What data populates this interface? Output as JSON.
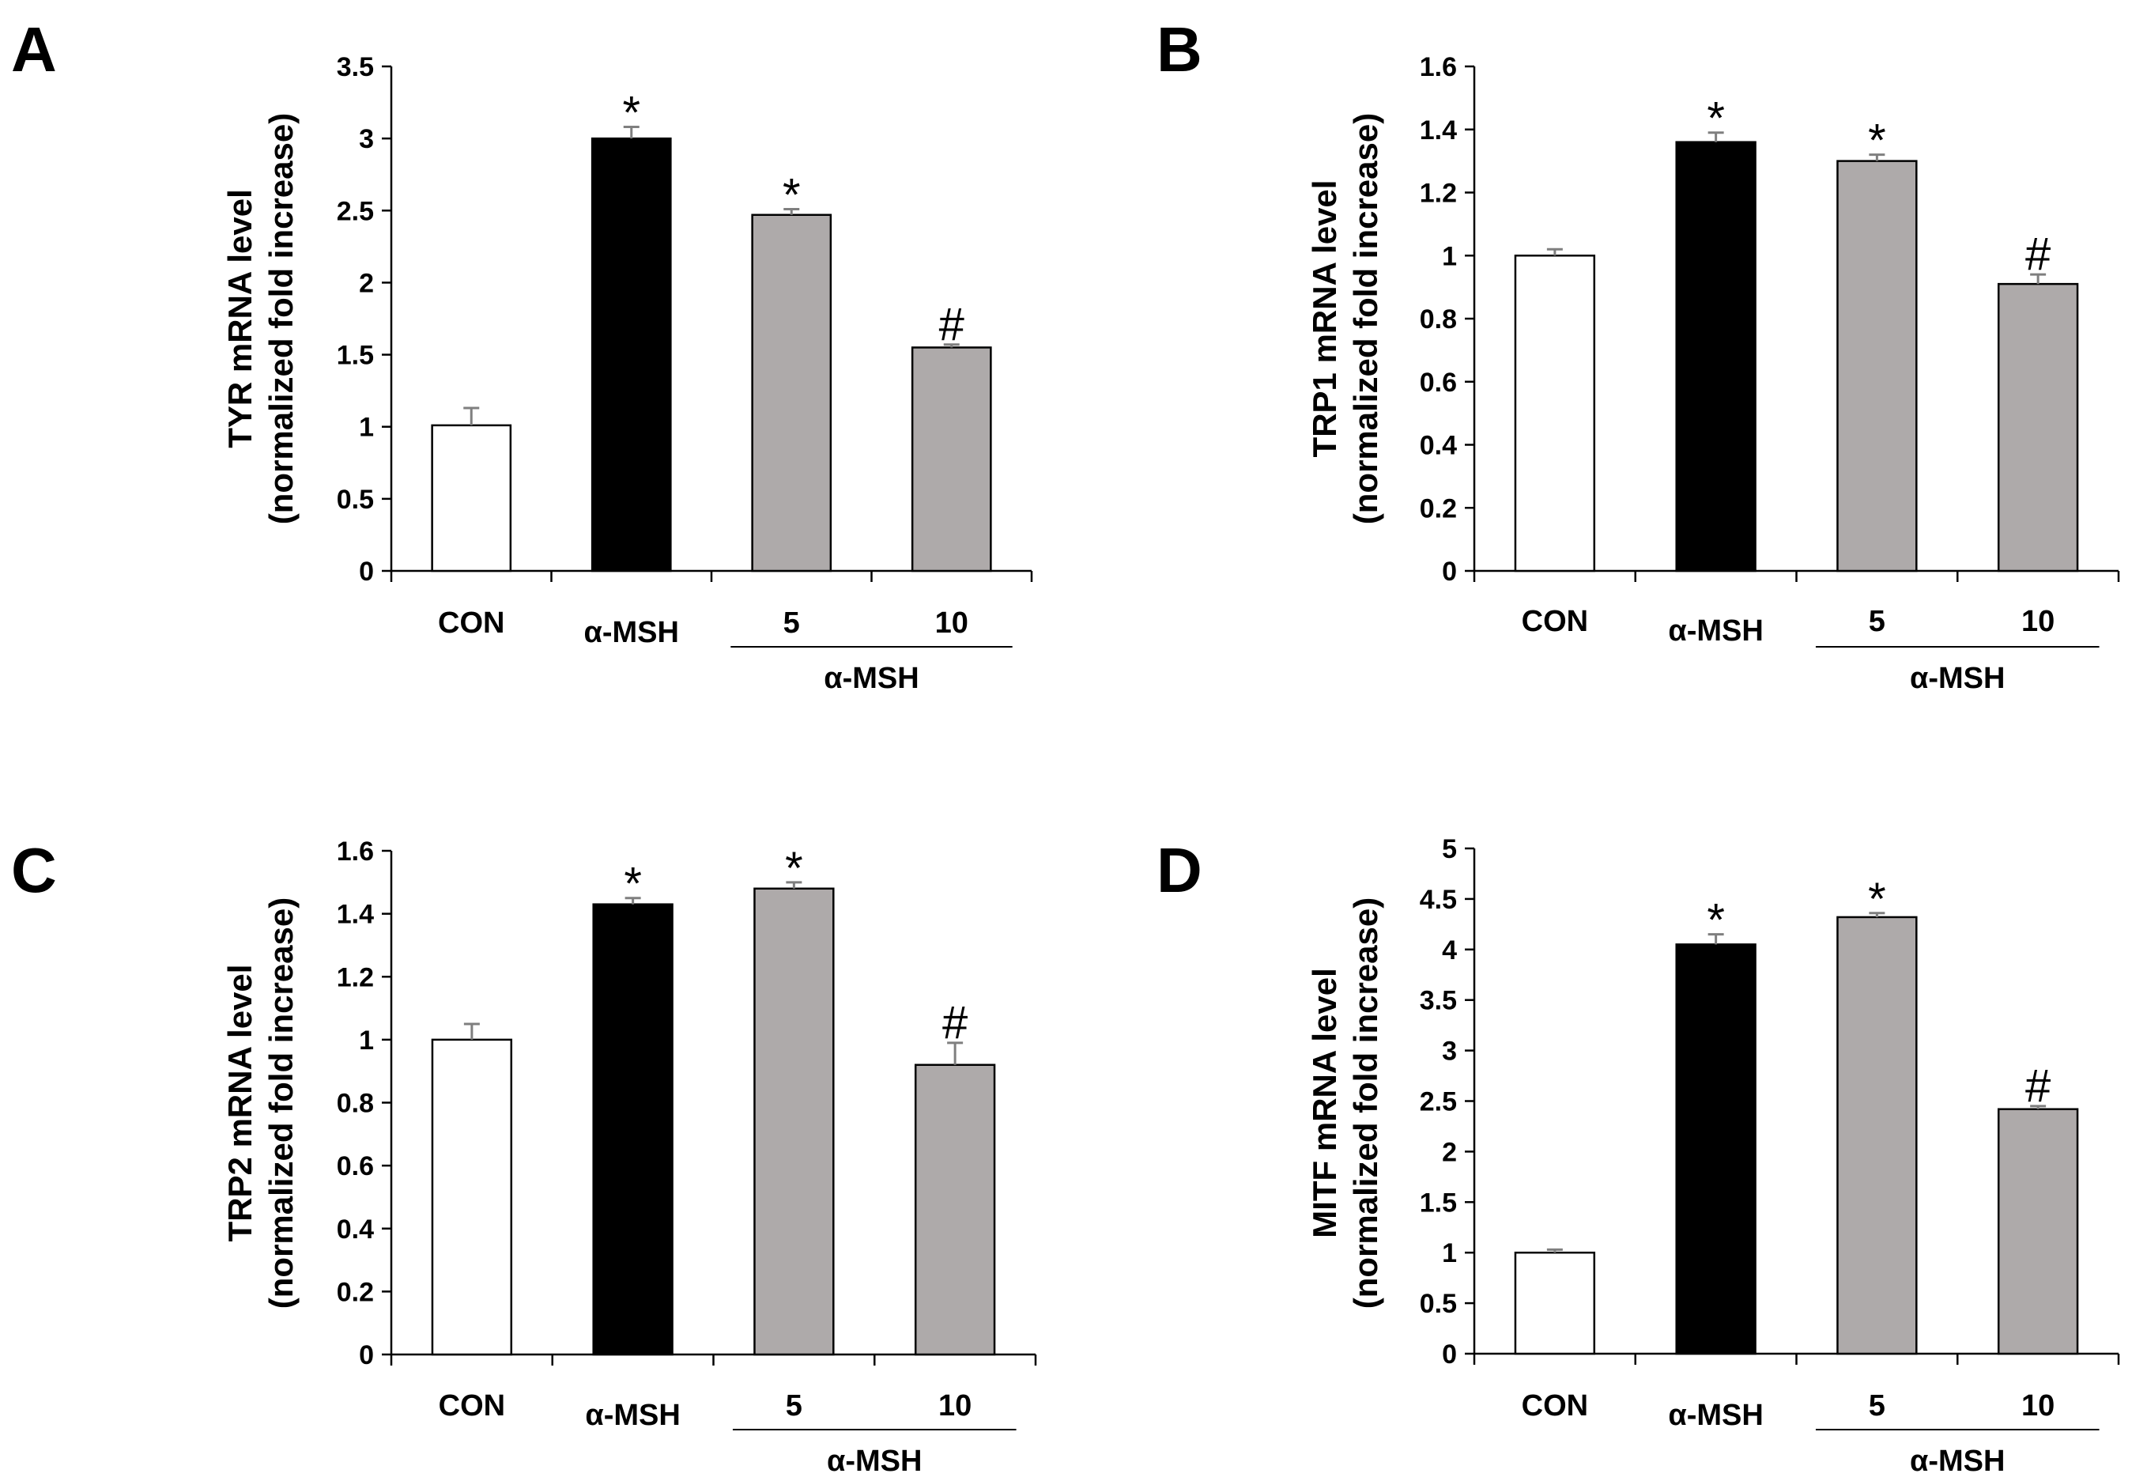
{
  "figure": {
    "panels": [
      "A",
      "B",
      "C",
      "D"
    ]
  },
  "chart_data": [
    {
      "type": "bar",
      "panel": "A",
      "ylabel": [
        "TYR mRNA level",
        "(normalized fold increase)"
      ],
      "xlabel": "",
      "categories": [
        "CON",
        "α-MSH",
        "5",
        "10"
      ],
      "group_label": "α-MSH",
      "values": [
        1.01,
        3.0,
        2.47,
        1.55
      ],
      "errors": [
        0.12,
        0.08,
        0.04,
        0.02
      ],
      "fills": [
        "#ffffff",
        "#000000",
        "#aeaaaa",
        "#aeaaaa"
      ],
      "significance": [
        "",
        "*",
        "*",
        "#"
      ],
      "ylim": [
        0,
        3.5
      ],
      "yticks": [
        "0",
        "0.5",
        "1",
        "1.5",
        "2",
        "2.5",
        "3",
        "3.5"
      ],
      "grid": false
    },
    {
      "type": "bar",
      "panel": "B",
      "ylabel": [
        "TRP1 mRNA level",
        "(normalized fold increase)"
      ],
      "xlabel": "",
      "categories": [
        "CON",
        "α-MSH",
        "5",
        "10"
      ],
      "group_label": "α-MSH",
      "values": [
        1.0,
        1.36,
        1.3,
        0.91
      ],
      "errors": [
        0.02,
        0.03,
        0.02,
        0.03
      ],
      "fills": [
        "#ffffff",
        "#000000",
        "#aeaaaa",
        "#aeaaaa"
      ],
      "significance": [
        "",
        "*",
        "*",
        "#"
      ],
      "ylim": [
        0,
        1.6
      ],
      "yticks": [
        "0",
        "0.2",
        "0.4",
        "0.6",
        "0.8",
        "1",
        "1.2",
        "1.4",
        "1.6"
      ],
      "grid": false
    },
    {
      "type": "bar",
      "panel": "C",
      "ylabel": [
        "TRP2 mRNA level",
        "(normalized fold increase)"
      ],
      "xlabel": "",
      "categories": [
        "CON",
        "α-MSH",
        "5",
        "10"
      ],
      "group_label": "α-MSH",
      "values": [
        1.0,
        1.43,
        1.48,
        0.92
      ],
      "errors": [
        0.05,
        0.02,
        0.02,
        0.07
      ],
      "fills": [
        "#ffffff",
        "#000000",
        "#aeaaaa",
        "#aeaaaa"
      ],
      "significance": [
        "",
        "*",
        "*",
        "#"
      ],
      "ylim": [
        0,
        1.6
      ],
      "yticks": [
        "0",
        "0.2",
        "0.4",
        "0.6",
        "0.8",
        "1",
        "1.2",
        "1.4",
        "1.6"
      ],
      "grid": false
    },
    {
      "type": "bar",
      "panel": "D",
      "ylabel": [
        "MITF mRNA level",
        "(normalized fold increase)"
      ],
      "xlabel": "",
      "categories": [
        "CON",
        "α-MSH",
        "5",
        "10"
      ],
      "group_label": "α-MSH",
      "values": [
        1.0,
        4.05,
        4.32,
        2.42
      ],
      "errors": [
        0.03,
        0.1,
        0.04,
        0.03
      ],
      "fills": [
        "#ffffff",
        "#000000",
        "#aeaaaa",
        "#aeaaaa"
      ],
      "significance": [
        "",
        "*",
        "*",
        "#"
      ],
      "ylim": [
        0,
        5
      ],
      "yticks": [
        "0",
        "0.5",
        "1",
        "1.5",
        "2",
        "2.5",
        "3",
        "3.5",
        "4",
        "4.5",
        "5"
      ],
      "grid": false
    }
  ]
}
